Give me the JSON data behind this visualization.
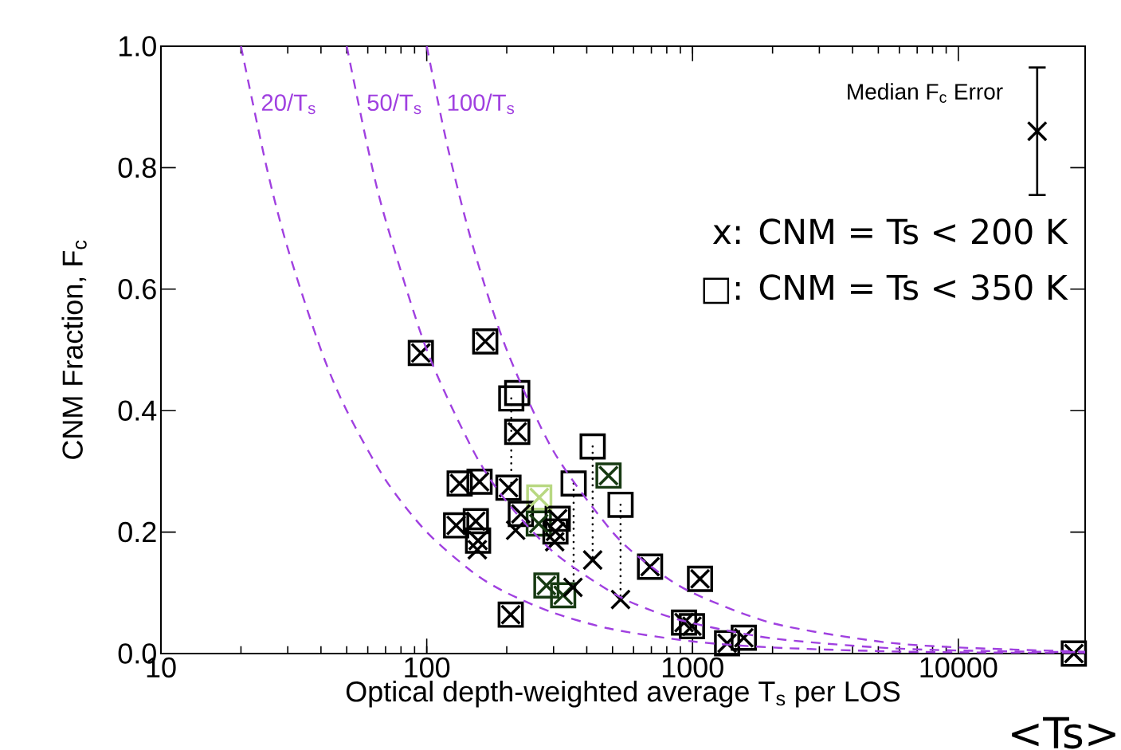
{
  "chart_data": {
    "type": "scatter",
    "xlabel": "Optical depth-weighted average T$_{s}$ per LOS",
    "ylabel": "CNM Fraction, F$_{c}$",
    "log": "x",
    "xlim": [
      10,
      30000
    ],
    "ylim": [
      0,
      1
    ],
    "xticks": [
      10,
      100,
      1000,
      10000
    ],
    "yticks": [
      {
        "value": 0,
        "label": "0.0"
      },
      {
        "value": 0.2,
        "label": "0.2"
      },
      {
        "value": 0.4,
        "label": "0.4"
      },
      {
        "value": 0.6,
        "label": "0.6"
      },
      {
        "value": 0.8,
        "label": "0.8"
      },
      {
        "value": 1,
        "label": "1.0"
      }
    ],
    "annotations": [
      "x: CNM = Ts < 200 K",
      "□: CNM = Ts < 350 K",
      "<Ts>"
    ],
    "series": [
      {
        "marker": "square",
        "x": [
          95,
          166,
          208,
          219,
          219,
          133,
          158,
          203,
          265,
          226,
          264,
          311,
          305,
          129,
          153,
          156,
          357,
          421,
          483,
          536,
          282,
          326,
          207,
          692,
          1067,
          929,
          995,
          1349,
          1559,
          27200
        ],
        "values": [
          0.495,
          0.514,
          0.42,
          0.429,
          0.365,
          0.28,
          0.283,
          0.273,
          0.257,
          0.23,
          0.214,
          0.222,
          0.201,
          0.211,
          0.218,
          0.186,
          0.28,
          0.341,
          0.293,
          0.245,
          0.112,
          0.096,
          0.064,
          0.143,
          0.123,
          0.051,
          0.045,
          0.017,
          0.026,
          0.0
        ],
        "colors": [
          "#000000",
          "#000000",
          "#000000",
          "#000000",
          "#000000",
          "#000000",
          "#000000",
          "#000000",
          "#b8d882",
          "#000000",
          "#173a12",
          "#000000",
          "#000000",
          "#000000",
          "#000000",
          "#000000",
          "#000000",
          "#000000",
          "#173a12",
          "#000000",
          "#173a12",
          "#173a12",
          "#000000",
          "#000000",
          "#000000",
          "#000000",
          "#000000",
          "#000000",
          "#000000",
          "#000000"
        ]
      },
      {
        "marker": "cross",
        "x": [
          95,
          166,
          219,
          133,
          158,
          203,
          265,
          226,
          264,
          311,
          305,
          129,
          153,
          156,
          483,
          282,
          326,
          207,
          692,
          1067,
          929,
          995,
          1349,
          1559,
          27200,
          155,
          216,
          303,
          355,
          421,
          536
        ],
        "values": [
          0.495,
          0.514,
          0.365,
          0.28,
          0.283,
          0.273,
          0.257,
          0.23,
          0.214,
          0.222,
          0.201,
          0.211,
          0.218,
          0.186,
          0.293,
          0.112,
          0.096,
          0.064,
          0.143,
          0.123,
          0.051,
          0.045,
          0.017,
          0.026,
          0.0,
          0.171,
          0.203,
          0.184,
          0.109,
          0.154,
          0.089
        ],
        "colors": [
          "#000000",
          "#000000",
          "#000000",
          "#000000",
          "#000000",
          "#000000",
          "#b8d882",
          "#000000",
          "#173a12",
          "#000000",
          "#000000",
          "#000000",
          "#000000",
          "#000000",
          "#173a12",
          "#173a12",
          "#173a12",
          "#000000",
          "#000000",
          "#000000",
          "#000000",
          "#000000",
          "#000000",
          "#000000",
          "#000000",
          "#000000",
          "#000000",
          "#000000",
          "#000000",
          "#000000",
          "#000000"
        ]
      },
      {
        "type": "line",
        "line_style": "dotted",
        "color": "#000000",
        "x": [
          208,
          208,
          null,
          357,
          357,
          null,
          421,
          421,
          null,
          536,
          536
        ],
        "values": [
          0.42,
          0.273,
          null,
          0.28,
          0.109,
          null,
          0.341,
          0.154,
          null,
          0.245,
          0.089
        ]
      },
      {
        "type": "line",
        "line_style": "dashed",
        "color": "#a040e0",
        "name": "20/T$_{s}$",
        "x": [
          20,
          25,
          30,
          40,
          50,
          70,
          100,
          150,
          200,
          300,
          500,
          1000,
          2000,
          5000,
          10000,
          30000
        ],
        "values": [
          1,
          0.8,
          0.667,
          0.5,
          0.4,
          0.286,
          0.2,
          0.133,
          0.1,
          0.067,
          0.04,
          0.02,
          0.01,
          0.004,
          0.002,
          0.001
        ]
      },
      {
        "type": "line",
        "line_style": "dashed",
        "color": "#a040e0",
        "name": "50/T$_{s}$",
        "x": [
          50,
          60,
          70,
          100,
          150,
          200,
          300,
          500,
          700,
          1000,
          2000,
          5000,
          10000,
          30000
        ],
        "values": [
          1,
          0.833,
          0.714,
          0.5,
          0.333,
          0.25,
          0.167,
          0.1,
          0.071,
          0.05,
          0.025,
          0.01,
          0.005,
          0.002
        ]
      },
      {
        "type": "line",
        "line_style": "dashed",
        "color": "#a040e0",
        "name": "100/T$_{s}$",
        "x": [
          100,
          120,
          150,
          200,
          300,
          500,
          700,
          1000,
          2000,
          5000,
          10000,
          30000
        ],
        "values": [
          1,
          0.833,
          0.667,
          0.5,
          0.333,
          0.2,
          0.143,
          0.1,
          0.05,
          0.02,
          0.01,
          0.003
        ]
      },
      {
        "marker": "cross",
        "color": "#000000",
        "name": "Median F$_{c}$ Error",
        "x": [
          19800
        ],
        "values": [
          0.86
        ],
        "errors": [
          0.105
        ]
      }
    ]
  }
}
